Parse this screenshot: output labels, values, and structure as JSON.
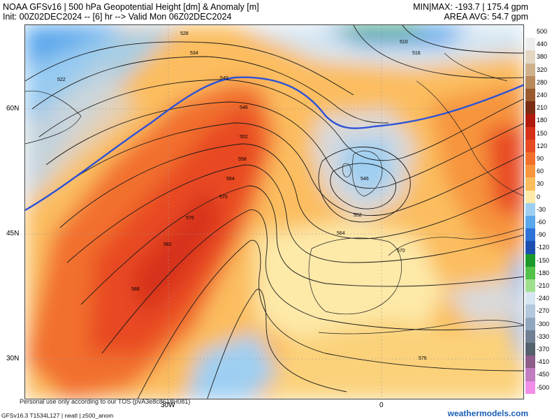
{
  "header": {
    "title_line1": "NOAA GFSv16 | 500 hPa Geopotential Height [dm] & Anomaly [m]",
    "title_line2": "Init: 00Z02DEC2024 -- [6] hr --> Valid Mon 06Z02DEC2024",
    "stats_line1": "MIN|MAX: -193.7 | 175.4 gpm",
    "stats_line2": "AREA AVG: 54.7 gpm"
  },
  "axes": {
    "lat_labels": [
      "60N",
      "45N",
      "30N"
    ],
    "lon_labels": [
      "30W",
      "0"
    ]
  },
  "contour_labels": [
    "528",
    "534",
    "540",
    "546",
    "552",
    "558",
    "564",
    "570",
    "576",
    "582",
    "588",
    "522",
    "516",
    "510",
    "546",
    "552",
    "564",
    "570",
    "576"
  ],
  "colorbar": {
    "levels": [
      {
        "label": "500",
        "color": "#ffffff"
      },
      {
        "label": "440",
        "color": "#eeeeee"
      },
      {
        "label": "380",
        "color": "#e3d7c4"
      },
      {
        "label": "320",
        "color": "#cfb28b"
      },
      {
        "label": "280",
        "color": "#b98a5a"
      },
      {
        "label": "240",
        "color": "#9a5a2e"
      },
      {
        "label": "210",
        "color": "#7a2d12"
      },
      {
        "label": "180",
        "color": "#b11a0c"
      },
      {
        "label": "150",
        "color": "#d7301a"
      },
      {
        "label": "120",
        "color": "#e84a22"
      },
      {
        "label": "90",
        "color": "#f2702e"
      },
      {
        "label": "60",
        "color": "#f7943e"
      },
      {
        "label": "30",
        "color": "#fbbd5e"
      },
      {
        "label": "0",
        "color": "#fde9a8"
      },
      {
        "label": "-30",
        "color": "#9ecff2"
      },
      {
        "label": "-60",
        "color": "#5aa7ec"
      },
      {
        "label": "-90",
        "color": "#2e72d8"
      },
      {
        "label": "-120",
        "color": "#1c4fb0"
      },
      {
        "label": "-150",
        "color": "#1b9a2a"
      },
      {
        "label": "-180",
        "color": "#52c24a"
      },
      {
        "label": "-210",
        "color": "#9fe08f"
      },
      {
        "label": "-240",
        "color": "#d6e6f2"
      },
      {
        "label": "-270",
        "color": "#b3c8dc"
      },
      {
        "label": "-300",
        "color": "#8fa6bf"
      },
      {
        "label": "-330",
        "color": "#6f7f94"
      },
      {
        "label": "-370",
        "color": "#55606d"
      },
      {
        "label": "-410",
        "color": "#8e5d8a"
      },
      {
        "label": "-450",
        "color": "#c27cc0"
      },
      {
        "label": "-500",
        "color": "#f08ee8"
      }
    ]
  },
  "footer": {
    "notice": "Personal use only according to our TOS (pvA3e8c8618H081)",
    "meta": "GFSv16.3 T1534L127 | neatl | z500_anom",
    "brand": "weathermodels.com"
  },
  "colors": {
    "anomaly_zero_line": "#2d52d6",
    "grid": "#999999",
    "contour": "#1a1a1a"
  }
}
